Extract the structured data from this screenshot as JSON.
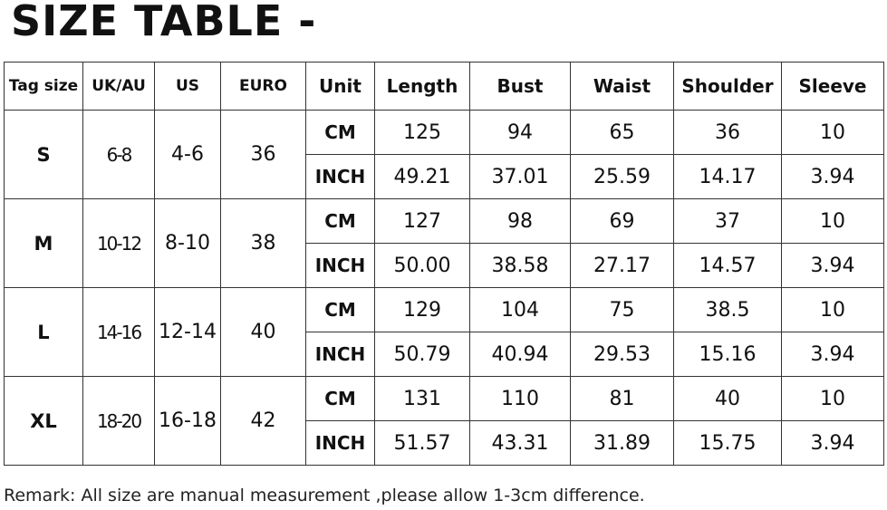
{
  "title": "SIZE TABLE -",
  "headers": [
    "Tag size",
    "UK/AU",
    "US",
    "EURO",
    "Unit",
    "Length",
    "Bust",
    "Waist",
    "Shoulder",
    "Sleeve"
  ],
  "rows": [
    {
      "tag": "S",
      "uk": "6-8",
      "us": "4-6",
      "euro": "36",
      "cm": {
        "unit": "CM",
        "values": [
          "125",
          "94",
          "65",
          "36",
          "10"
        ]
      },
      "inch": {
        "unit": "INCH",
        "values": [
          "49.21",
          "37.01",
          "25.59",
          "14.17",
          "3.94"
        ]
      }
    },
    {
      "tag": "M",
      "uk": "10-12",
      "us": "8-10",
      "euro": "38",
      "cm": {
        "unit": "CM",
        "values": [
          "127",
          "98",
          "69",
          "37",
          "10"
        ]
      },
      "inch": {
        "unit": "INCH",
        "values": [
          "50.00",
          "38.58",
          "27.17",
          "14.57",
          "3.94"
        ]
      }
    },
    {
      "tag": "L",
      "uk": "14-16",
      "us": "12-14",
      "euro": "40",
      "cm": {
        "unit": "CM",
        "values": [
          "129",
          "104",
          "75",
          "38.5",
          "10"
        ]
      },
      "inch": {
        "unit": "INCH",
        "values": [
          "50.79",
          "40.94",
          "29.53",
          "15.16",
          "3.94"
        ]
      }
    },
    {
      "tag": "XL",
      "uk": "18-20",
      "us": "16-18",
      "euro": "42",
      "cm": {
        "unit": "CM",
        "values": [
          "131",
          "110",
          "81",
          "40",
          "10"
        ]
      },
      "inch": {
        "unit": "INCH",
        "values": [
          "51.57",
          "43.31",
          "31.89",
          "15.75",
          "3.94"
        ]
      }
    }
  ],
  "remark": "Remark: All size are manual measurement ,please allow 1-3cm difference."
}
